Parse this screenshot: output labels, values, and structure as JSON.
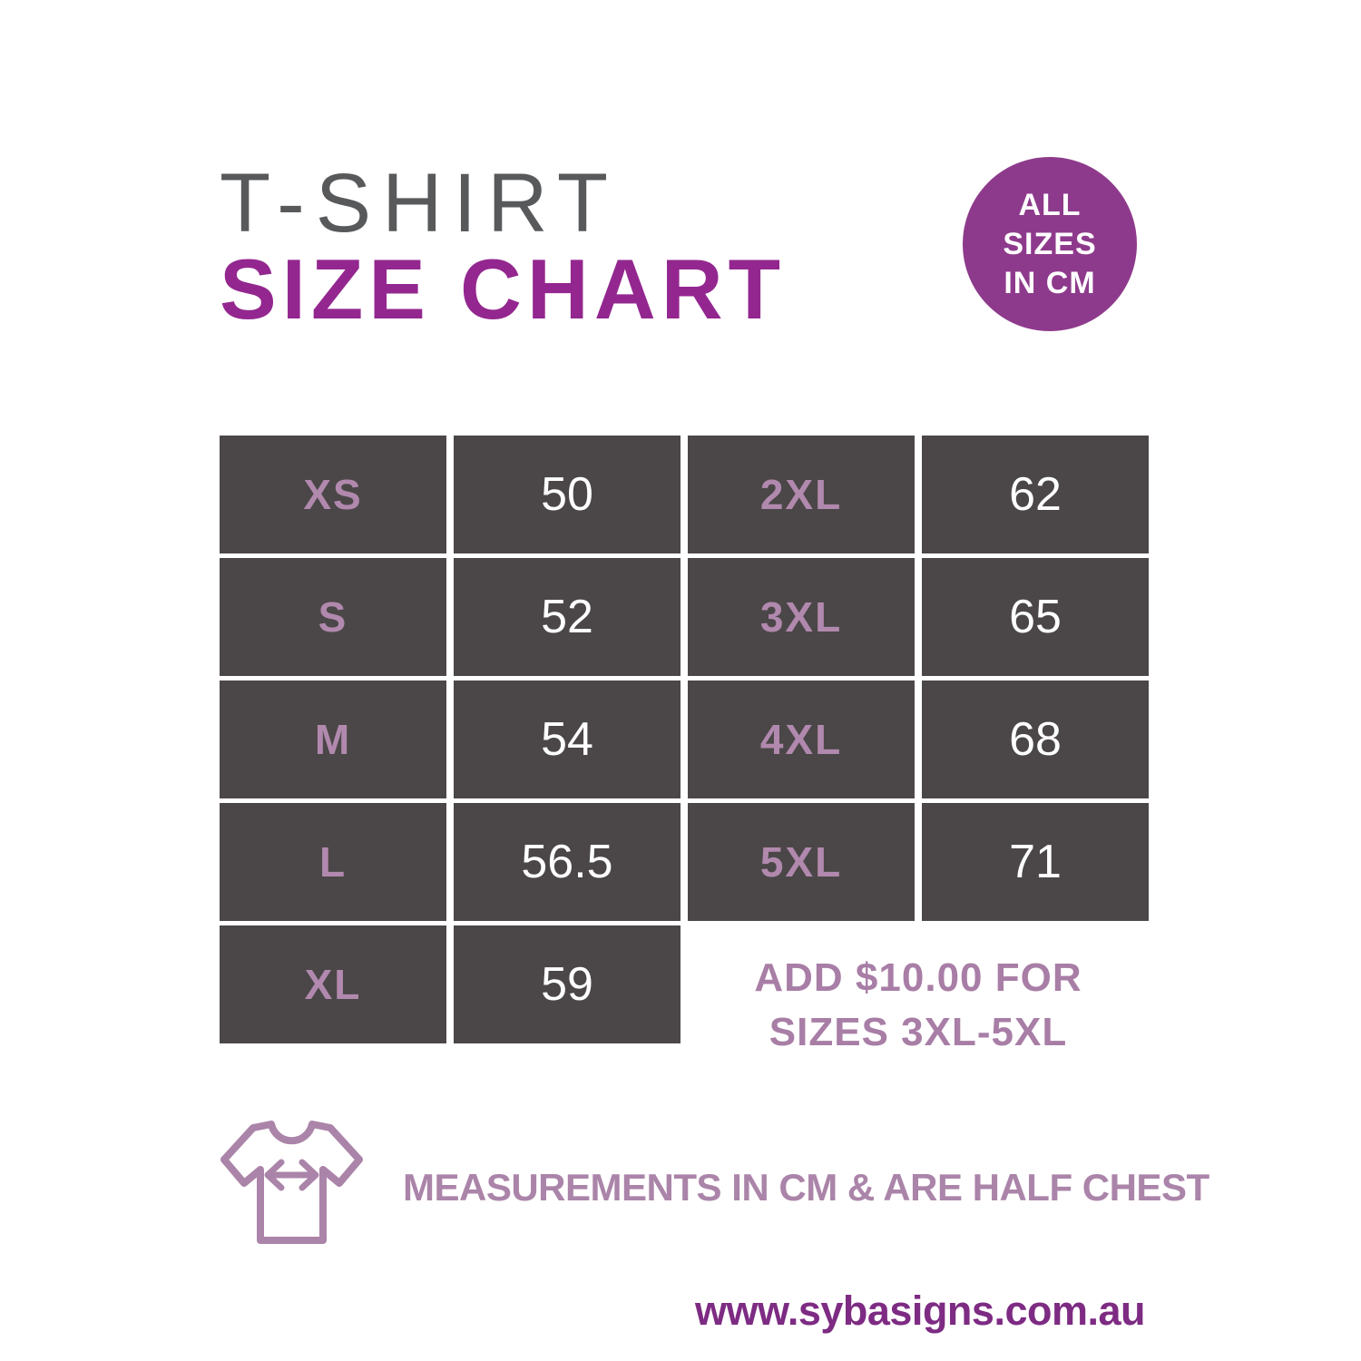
{
  "title": {
    "line1": "T-SHIRT",
    "line2": "SIZE CHART"
  },
  "badge": {
    "lines": [
      "ALL",
      "SIZES",
      "IN CM"
    ]
  },
  "table": {
    "left": [
      {
        "size": "XS",
        "value": "50"
      },
      {
        "size": "S",
        "value": "52"
      },
      {
        "size": "M",
        "value": "54"
      },
      {
        "size": "L",
        "value": "56.5"
      },
      {
        "size": "XL",
        "value": "59"
      }
    ],
    "right": [
      {
        "size": "2XL",
        "value": "62"
      },
      {
        "size": "3XL",
        "value": "65"
      },
      {
        "size": "4XL",
        "value": "68"
      },
      {
        "size": "5XL",
        "value": "71"
      }
    ]
  },
  "surcharge_note": {
    "line1": "ADD $10.00 FOR",
    "line2": "SIZES 3XL-5XL"
  },
  "measurement_note": "MEASUREMENTS IN CM & ARE HALF CHEST",
  "footer": {
    "website": "www.sybasigns.com.au"
  },
  "icons": {
    "tshirt": "tshirt-with-width-arrow-icon"
  },
  "colors": {
    "title_gray": "#58595b",
    "heading_purple": "#93278f",
    "badge_purple": "#8e3a8c",
    "cell_background": "#4b4748",
    "size_label_mauve": "#b289ae",
    "value_white": "#ffffff",
    "note_mauve": "#a87ea6",
    "icon_mauve": "#ab84a9",
    "footer_purple": "#7d2b83"
  },
  "chart_data": {
    "type": "table",
    "title": "T-SHIRT SIZE CHART",
    "unit_note": "ALL SIZES IN CM",
    "columns": [
      "size",
      "half_chest_cm"
    ],
    "rows": [
      [
        "XS",
        50
      ],
      [
        "S",
        52
      ],
      [
        "M",
        54
      ],
      [
        "L",
        56.5
      ],
      [
        "XL",
        59
      ],
      [
        "2XL",
        62
      ],
      [
        "3XL",
        65
      ],
      [
        "4XL",
        68
      ],
      [
        "5XL",
        71
      ]
    ],
    "annotations": [
      "ADD $10.00 FOR SIZES 3XL-5XL",
      "MEASUREMENTS IN CM & ARE HALF CHEST"
    ]
  }
}
